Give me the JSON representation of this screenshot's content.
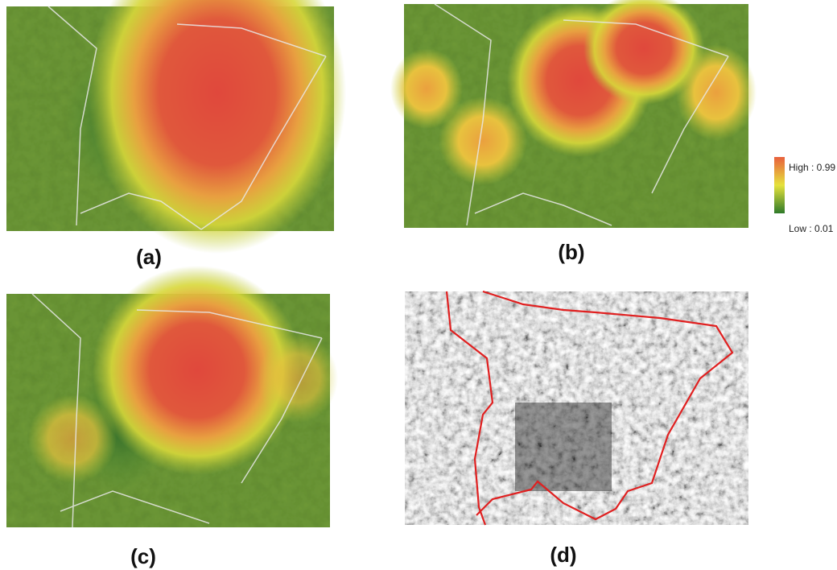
{
  "panels": [
    {
      "label": "(a)"
    },
    {
      "label": "(b)"
    },
    {
      "label": "(c)"
    },
    {
      "label": "(d)"
    }
  ],
  "legend": {
    "high": "High : 0.99",
    "low": "Low : 0.01"
  }
}
